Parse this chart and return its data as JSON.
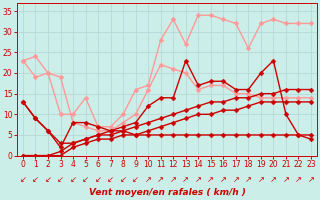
{
  "bg_color": "#cceee8",
  "grid_color": "#aadddd",
  "xlabel": "Vent moyen/en rafales ( km/h )",
  "xlim": [
    -0.5,
    23.5
  ],
  "ylim": [
    0,
    37
  ],
  "yticks": [
    0,
    5,
    10,
    15,
    20,
    25,
    30,
    35
  ],
  "xticks": [
    0,
    1,
    2,
    3,
    4,
    5,
    6,
    7,
    8,
    9,
    10,
    11,
    12,
    13,
    14,
    15,
    16,
    17,
    18,
    19,
    20,
    21,
    22,
    23
  ],
  "series": [
    {
      "x": [
        0,
        1,
        2,
        3,
        4,
        5,
        6,
        7,
        8,
        9,
        10,
        11,
        12,
        13,
        14,
        15,
        16,
        17,
        18,
        19,
        20,
        21,
        22,
        23
      ],
      "y": [
        23,
        24,
        20,
        10,
        10,
        14,
        7,
        7,
        10,
        16,
        17,
        28,
        33,
        27,
        34,
        34,
        33,
        32,
        26,
        32,
        33,
        32,
        32,
        32
      ],
      "color": "#ff9999",
      "lw": 1.0,
      "marker": "D",
      "ms": 2.5
    },
    {
      "x": [
        0,
        1,
        2,
        3,
        4,
        5,
        6,
        7,
        8,
        9,
        10,
        11,
        12,
        13,
        14,
        15,
        16,
        17,
        18,
        19,
        20,
        21,
        22,
        23
      ],
      "y": [
        23,
        19,
        20,
        19,
        8,
        7,
        6,
        6,
        8,
        10,
        16,
        22,
        21,
        20,
        16,
        17,
        17,
        15,
        15,
        14,
        14,
        14,
        14,
        14
      ],
      "color": "#ff9999",
      "lw": 1.0,
      "marker": "D",
      "ms": 2.5
    },
    {
      "x": [
        0,
        1,
        2,
        3,
        4,
        5,
        6,
        7,
        8,
        9,
        10,
        11,
        12,
        13,
        14,
        15,
        16,
        17,
        18,
        19,
        20,
        21,
        22,
        23
      ],
      "y": [
        13,
        9,
        6,
        2,
        8,
        8,
        7,
        6,
        7,
        8,
        12,
        14,
        14,
        23,
        17,
        18,
        18,
        16,
        16,
        20,
        23,
        10,
        5,
        4
      ],
      "color": "#cc0000",
      "lw": 1.0,
      "marker": "D",
      "ms": 2.5
    },
    {
      "x": [
        0,
        1,
        2,
        3,
        4,
        5,
        6,
        7,
        8,
        9,
        10,
        11,
        12,
        13,
        14,
        15,
        16,
        17,
        18,
        19,
        20,
        21,
        22,
        23
      ],
      "y": [
        0,
        0,
        0,
        1,
        3,
        4,
        5,
        5,
        6,
        7,
        8,
        9,
        10,
        11,
        12,
        13,
        13,
        14,
        14,
        15,
        15,
        16,
        16,
        16
      ],
      "color": "#cc0000",
      "lw": 1.0,
      "marker": "D",
      "ms": 2.5
    },
    {
      "x": [
        0,
        1,
        2,
        3,
        4,
        5,
        6,
        7,
        8,
        9,
        10,
        11,
        12,
        13,
        14,
        15,
        16,
        17,
        18,
        19,
        20,
        21,
        22,
        23
      ],
      "y": [
        0,
        0,
        0,
        0,
        2,
        3,
        4,
        4,
        5,
        5,
        6,
        7,
        8,
        9,
        10,
        10,
        11,
        11,
        12,
        13,
        13,
        13,
        13,
        13
      ],
      "color": "#cc0000",
      "lw": 1.0,
      "marker": "D",
      "ms": 2.5
    },
    {
      "x": [
        0,
        1,
        2,
        3,
        4,
        5,
        6,
        7,
        8,
        9,
        10,
        11,
        12,
        13,
        14,
        15,
        16,
        17,
        18,
        19,
        20,
        21,
        22,
        23
      ],
      "y": [
        13,
        9,
        6,
        3,
        3,
        4,
        5,
        6,
        6,
        5,
        5,
        5,
        5,
        5,
        5,
        5,
        5,
        5,
        5,
        5,
        5,
        5,
        5,
        5
      ],
      "color": "#cc0000",
      "lw": 1.0,
      "marker": "D",
      "ms": 2.5
    }
  ],
  "arrow_symbols": {
    "sw": [
      0,
      1,
      2
    ],
    "down": [
      3,
      4,
      5,
      6,
      7,
      8,
      9
    ],
    "ne": [
      10,
      11,
      12,
      13,
      14,
      15,
      16,
      17,
      18,
      19,
      20,
      21,
      22,
      23
    ]
  },
  "arrow_color": "#cc0000"
}
